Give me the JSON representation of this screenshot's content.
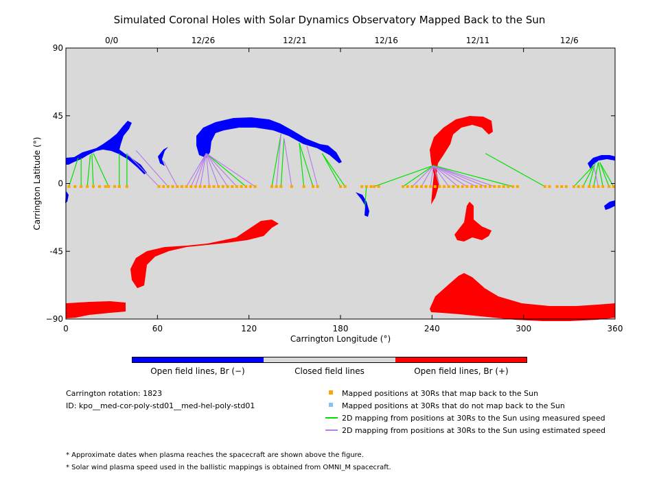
{
  "title": "Simulated Coronal Holes with Solar Dynamics Observatory Mapped Back to the Sun",
  "chart_data": {
    "type": "scatter",
    "xlabel": "Carrington Longitude (°)",
    "ylabel": "Carrington Latitude (°)",
    "xlim": [
      0,
      360
    ],
    "ylim": [
      -90,
      90
    ],
    "x_ticks": [
      "0",
      "60",
      "120",
      "180",
      "240",
      "300",
      "360"
    ],
    "y_ticks": [
      "90",
      "45",
      "0",
      "-45",
      "−90"
    ],
    "top_date_ticks": [
      {
        "label": "0/0",
        "lon": 30
      },
      {
        "label": "12/26",
        "lon": 90
      },
      {
        "label": "12/21",
        "lon": 150
      },
      {
        "label": "12/16",
        "lon": 210
      },
      {
        "label": "12/11",
        "lon": 270
      },
      {
        "label": "12/6",
        "lon": 330
      }
    ],
    "grid": false,
    "background": "#d9d9d9",
    "mapped_points_lon": [
      2,
      6,
      10,
      14,
      18,
      22,
      26,
      28,
      32,
      35,
      40,
      61,
      64,
      67,
      70,
      73,
      76,
      79,
      82,
      85,
      88,
      91,
      94,
      97,
      100,
      103,
      106,
      109,
      112,
      115,
      118,
      121,
      124,
      135,
      138,
      141,
      148,
      156,
      162,
      165,
      180,
      183,
      194,
      197,
      200,
      202,
      205,
      221,
      224,
      227,
      230,
      233,
      236,
      239,
      242,
      245,
      248,
      251,
      254,
      257,
      260,
      263,
      266,
      269,
      272,
      275,
      278,
      281,
      284,
      287,
      290,
      293,
      296,
      314,
      317,
      322,
      325,
      328,
      333,
      336,
      339,
      343,
      346,
      349,
      352,
      356,
      359
    ],
    "mapping_lines": [
      {
        "kind": "measured",
        "from": [
          2,
          -2
        ],
        "to": [
          8,
          17
        ]
      },
      {
        "kind": "measured",
        "from": [
          10,
          -2
        ],
        "to": [
          10,
          17
        ]
      },
      {
        "kind": "measured",
        "from": [
          14,
          -2
        ],
        "to": [
          16,
          19
        ]
      },
      {
        "kind": "measured",
        "from": [
          18,
          -2
        ],
        "to": [
          17,
          20
        ]
      },
      {
        "kind": "measured",
        "from": [
          28,
          -2
        ],
        "to": [
          18,
          20
        ]
      },
      {
        "kind": "measured",
        "from": [
          35,
          -2
        ],
        "to": [
          35,
          20
        ]
      },
      {
        "kind": "measured",
        "from": [
          40,
          -2
        ],
        "to": [
          40,
          20
        ]
      },
      {
        "kind": "estimated",
        "from": [
          61,
          -2
        ],
        "to": [
          40,
          20
        ]
      },
      {
        "kind": "estimated",
        "from": [
          67,
          -2
        ],
        "to": [
          46,
          22
        ]
      },
      {
        "kind": "estimated",
        "from": [
          73,
          -2
        ],
        "to": [
          64,
          15
        ]
      },
      {
        "kind": "estimated",
        "from": [
          79,
          -2
        ],
        "to": [
          92,
          20
        ]
      },
      {
        "kind": "estimated",
        "from": [
          82,
          -2
        ],
        "to": [
          92,
          20
        ]
      },
      {
        "kind": "estimated",
        "from": [
          85,
          -2
        ],
        "to": [
          92,
          20
        ]
      },
      {
        "kind": "estimated",
        "from": [
          88,
          -2
        ],
        "to": [
          92,
          20
        ]
      },
      {
        "kind": "estimated",
        "from": [
          94,
          -2
        ],
        "to": [
          92,
          20
        ]
      },
      {
        "kind": "estimated",
        "from": [
          100,
          -2
        ],
        "to": [
          92,
          20
        ]
      },
      {
        "kind": "estimated",
        "from": [
          106,
          -2
        ],
        "to": [
          92,
          20
        ]
      },
      {
        "kind": "estimated",
        "from": [
          112,
          -2
        ],
        "to": [
          92,
          20
        ]
      },
      {
        "kind": "measured",
        "from": [
          118,
          -2
        ],
        "to": [
          92,
          20
        ]
      },
      {
        "kind": "estimated",
        "from": [
          124,
          -2
        ],
        "to": [
          92,
          20
        ]
      },
      {
        "kind": "measured",
        "from": [
          135,
          -2
        ],
        "to": [
          141,
          33
        ]
      },
      {
        "kind": "estimated",
        "from": [
          138,
          -2
        ],
        "to": [
          141,
          33
        ]
      },
      {
        "kind": "measured",
        "from": [
          141,
          -2
        ],
        "to": [
          143,
          30
        ]
      },
      {
        "kind": "estimated",
        "from": [
          148,
          -2
        ],
        "to": [
          143,
          30
        ]
      },
      {
        "kind": "measured",
        "from": [
          156,
          -2
        ],
        "to": [
          153,
          27
        ]
      },
      {
        "kind": "measured",
        "from": [
          162,
          -2
        ],
        "to": [
          153,
          27
        ]
      },
      {
        "kind": "estimated",
        "from": [
          165,
          -2
        ],
        "to": [
          158,
          25
        ]
      },
      {
        "kind": "measured",
        "from": [
          180,
          -2
        ],
        "to": [
          168,
          20
        ]
      },
      {
        "kind": "measured",
        "from": [
          183,
          -2
        ],
        "to": [
          168,
          20
        ]
      },
      {
        "kind": "measured",
        "from": [
          197,
          -2
        ],
        "to": [
          196,
          -15
        ]
      },
      {
        "kind": "measured",
        "from": [
          202,
          -2
        ],
        "to": [
          241,
          12
        ]
      },
      {
        "kind": "measured",
        "from": [
          221,
          -2
        ],
        "to": [
          241,
          12
        ]
      },
      {
        "kind": "estimated",
        "from": [
          227,
          -2
        ],
        "to": [
          241,
          12
        ]
      },
      {
        "kind": "estimated",
        "from": [
          233,
          -2
        ],
        "to": [
          241,
          12
        ]
      },
      {
        "kind": "estimated",
        "from": [
          239,
          -2
        ],
        "to": [
          241,
          12
        ]
      },
      {
        "kind": "estimated",
        "from": [
          245,
          -2
        ],
        "to": [
          241,
          12
        ]
      },
      {
        "kind": "estimated",
        "from": [
          251,
          -2
        ],
        "to": [
          241,
          12
        ]
      },
      {
        "kind": "estimated",
        "from": [
          257,
          -2
        ],
        "to": [
          241,
          12
        ]
      },
      {
        "kind": "estimated",
        "from": [
          263,
          -2
        ],
        "to": [
          241,
          12
        ]
      },
      {
        "kind": "estimated",
        "from": [
          269,
          -2
        ],
        "to": [
          241,
          12
        ]
      },
      {
        "kind": "estimated",
        "from": [
          275,
          -2
        ],
        "to": [
          241,
          12
        ]
      },
      {
        "kind": "estimated",
        "from": [
          281,
          -2
        ],
        "to": [
          241,
          12
        ]
      },
      {
        "kind": "measured",
        "from": [
          293,
          -2
        ],
        "to": [
          241,
          12
        ]
      },
      {
        "kind": "measured",
        "from": [
          314,
          -2
        ],
        "to": [
          275,
          20
        ]
      },
      {
        "kind": "measured",
        "from": [
          333,
          -2
        ],
        "to": [
          346,
          12
        ]
      },
      {
        "kind": "measured",
        "from": [
          339,
          -2
        ],
        "to": [
          346,
          12
        ]
      },
      {
        "kind": "measured",
        "from": [
          343,
          -2
        ],
        "to": [
          347,
          14
        ]
      },
      {
        "kind": "measured",
        "from": [
          346,
          -2
        ],
        "to": [
          349,
          14
        ]
      },
      {
        "kind": "estimated",
        "from": [
          349,
          -2
        ],
        "to": [
          346,
          12
        ]
      },
      {
        "kind": "measured",
        "from": [
          352,
          -2
        ],
        "to": [
          349,
          14
        ]
      },
      {
        "kind": "measured",
        "from": [
          356,
          -2
        ],
        "to": [
          350,
          14
        ]
      },
      {
        "kind": "measured",
        "from": [
          359,
          -2
        ],
        "to": [
          350,
          14
        ]
      }
    ]
  },
  "colorbar": {
    "negative_color": "#0000ff",
    "closed_color": "#d9d9d9",
    "positive_color": "#ff0000",
    "negative_label": "Open field lines, Br (−)",
    "closed_label": "Closed field lines",
    "positive_label": "Open field lines, Br (+)"
  },
  "info": {
    "rotation": "Carrington rotation: 1823",
    "id": "ID: kpo__med-cor-poly-std01__med-hel-poly-std01"
  },
  "legend": {
    "mapped_color": "#ffa500",
    "unmapped_color": "#87c1f0",
    "measured_color": "#00e000",
    "estimated_color": "#b77ee8",
    "mapped": "Mapped positions at 30Rs that map back to the Sun",
    "unmapped": "Mapped positions at 30Rs that do not map back to the Sun",
    "measured": "2D mapping from positions at 30Rs to the Sun using measured speed",
    "estimated": "2D mapping from positions at 30Rs to the Sun using estimated speed"
  },
  "notes": {
    "n1": "* Approximate dates when plasma reaches the spacecraft are shown above the figure.",
    "n2": "* Solar wind plasma speed used in the ballistic mappings is obtained from OMNI_M spacecraft."
  }
}
